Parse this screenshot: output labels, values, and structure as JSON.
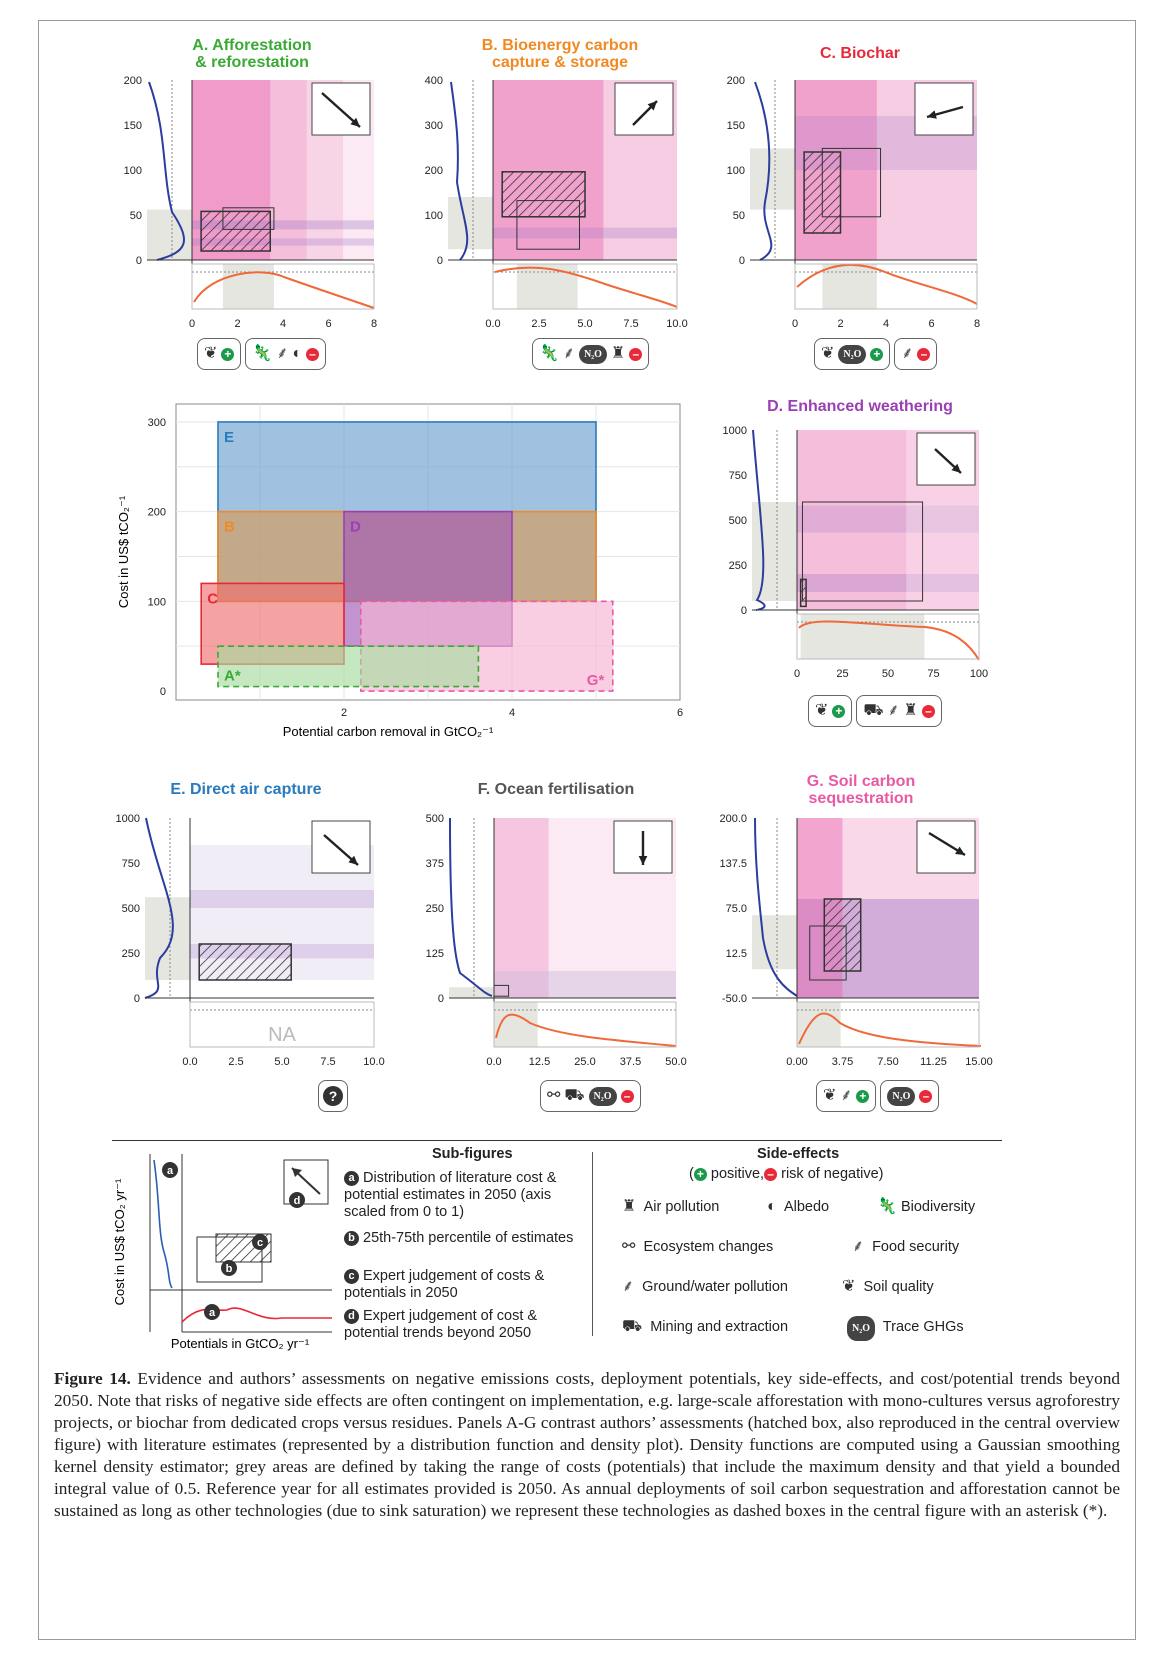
{
  "panels": {
    "A": {
      "title_1": "A. Afforestation",
      "title_2": "& reforestation",
      "color": "#3aaa35",
      "yticks": [
        "200",
        "150",
        "100",
        "50",
        "0"
      ],
      "xticks": [
        "0",
        "2",
        "4",
        "6",
        "8"
      ],
      "se_pos": [
        "soil-quality-icon"
      ],
      "se_neg": [
        "biodiversity-icon",
        "food-security-icon",
        "albedo-icon"
      ]
    },
    "B": {
      "title_1": "B. Bioenergy carbon",
      "title_2": "capture & storage",
      "color": "#f08a24",
      "yticks": [
        "400",
        "300",
        "200",
        "100",
        "0"
      ],
      "xticks": [
        "0.0",
        "2.5",
        "5.0",
        "7.5",
        "10.0"
      ],
      "se_neg": [
        "biodiversity-icon",
        "food-security-icon",
        "trace-ghg-icon",
        "air-pollution-icon"
      ]
    },
    "C": {
      "title_1": "C. Biochar",
      "title_2": "",
      "color": "#e8293a",
      "yticks": [
        "200",
        "150",
        "100",
        "50",
        "0"
      ],
      "xticks": [
        "0",
        "2",
        "4",
        "6",
        "8"
      ],
      "se_pos": [
        "soil-quality-icon",
        "trace-ghg-icon"
      ],
      "se_neg": [
        "food-security-icon"
      ]
    },
    "D": {
      "title_1": "D. Enhanced weathering",
      "title_2": "",
      "color": "#9b3fb4",
      "yticks": [
        "1000",
        "750",
        "500",
        "250",
        "0"
      ],
      "xticks": [
        "0",
        "25",
        "50",
        "75",
        "100"
      ],
      "se_pos": [
        "soil-quality-icon"
      ],
      "se_neg": [
        "mining-icon",
        "ground-water-pollution-icon",
        "air-pollution-icon"
      ]
    },
    "E": {
      "title_1": "E. Direct air capture",
      "title_2": "",
      "color": "#2a7bbd",
      "yticks": [
        "1000",
        "750",
        "500",
        "250",
        "0"
      ],
      "xticks": [
        "0.0",
        "2.5",
        "5.0",
        "7.5",
        "10.0"
      ],
      "na_label": "NA",
      "se_unknown": "?"
    },
    "F": {
      "title_1": "F. Ocean fertilisation",
      "title_2": "",
      "color": "#555555",
      "yticks": [
        "500",
        "375",
        "250",
        "125",
        "0"
      ],
      "xticks": [
        "0.0",
        "12.5",
        "25.0",
        "37.5",
        "50.0"
      ],
      "se_neg": [
        "ecosystem-changes-icon",
        "mining-icon",
        "trace-ghg-icon"
      ]
    },
    "G": {
      "title_1": "G. Soil carbon",
      "title_2": "sequestration",
      "color": "#e85aa6",
      "yticks": [
        "200.0",
        "137.5",
        "75.0",
        "12.5",
        "-50.0"
      ],
      "xticks": [
        "0.00",
        "3.75",
        "7.50",
        "11.25",
        "15.00"
      ],
      "se_pos": [
        "soil-quality-icon",
        "food-security-icon"
      ],
      "se_neg": [
        "trace-ghg-icon"
      ]
    }
  },
  "chart_data": [
    {
      "type": "bar",
      "title": "",
      "xlabel": "Potential carbon removal in GtCO₂⁻¹",
      "ylabel": "Cost in US$ tCO₂⁻¹",
      "xlim": [
        0,
        6
      ],
      "ylim": [
        -10,
        320
      ],
      "xticks": [
        2,
        4,
        6
      ],
      "yticks": [
        0,
        100,
        200,
        300
      ],
      "grid": true,
      "boxes": [
        {
          "label": "E",
          "x0": 0.5,
          "x1": 5.0,
          "y0": 100,
          "y1": 300,
          "color": "#6ea0d0",
          "edge": "#2a7bbd",
          "dashed": false
        },
        {
          "label": "B",
          "x0": 0.5,
          "x1": 5.0,
          "y0": 100,
          "y1": 200,
          "color": "#d59b5a",
          "edge": "#f08a24",
          "dashed": false
        },
        {
          "label": "D",
          "x0": 2.0,
          "x1": 4.0,
          "y0": 50,
          "y1": 200,
          "color": "#a25ab5",
          "edge": "#9b3fb4",
          "dashed": false
        },
        {
          "label": "C",
          "x0": 0.3,
          "x1": 2.0,
          "y0": 30,
          "y1": 120,
          "color": "#f07070",
          "edge": "#e8293a",
          "dashed": false
        },
        {
          "label": "G*",
          "x0": 2.2,
          "x1": 5.2,
          "y0": 0,
          "y1": 100,
          "color": "#f6b3d4",
          "edge": "#e85aa6",
          "dashed": true
        },
        {
          "label": "A*",
          "x0": 0.5,
          "x1": 3.6,
          "y0": 5,
          "y1": 50,
          "color": "#a8dba0",
          "edge": "#3aaa35",
          "dashed": true
        }
      ]
    }
  ],
  "legend": {
    "subfig_title": "Sub-figures",
    "side_title": "Side-effects",
    "side_sub_open": "(",
    "side_sub_pos": "positive,",
    "side_sub_neg": "risk of negative)",
    "mini_ylabel": "Cost in US$ tCO₂ yr⁻¹",
    "mini_xlabel": "Potentials in GtCO₂ yr⁻¹",
    "items": [
      {
        "key": "a",
        "text": "Distribution of literature cost & potential estimates in 2050 (axis scaled from 0 to 1)"
      },
      {
        "key": "b",
        "text": "25th-75th percentile of estimates"
      },
      {
        "key": "c",
        "text": "Expert judgement of costs & potentials in 2050"
      },
      {
        "key": "d",
        "text": "Expert judgement of cost & potential trends beyond 2050"
      }
    ],
    "side": [
      {
        "icon": "air-pollution-icon",
        "label": "Air pollution"
      },
      {
        "icon": "albedo-icon",
        "label": "Albedo"
      },
      {
        "icon": "biodiversity-icon",
        "label": "Biodiversity"
      },
      {
        "icon": "ecosystem-changes-icon",
        "label": "Ecosystem changes"
      },
      {
        "icon": "food-security-icon",
        "label": "Food security"
      },
      {
        "icon": "ground-water-pollution-icon",
        "label": "Ground/water pollution"
      },
      {
        "icon": "soil-quality-icon",
        "label": "Soil quality"
      },
      {
        "icon": "mining-icon",
        "label": "Mining and extraction"
      },
      {
        "icon": "trace-ghg-icon",
        "label": "Trace GHGs"
      }
    ],
    "n2o": "N₂O"
  },
  "caption": {
    "label": "Figure 14.",
    "text": " Evidence and authors’ assessments on negative emissions costs, deployment potentials, key side-effects, and cost/potential trends beyond 2050. Note that risks of negative side effects are often contingent on implementation, e.g. large-scale afforestation with mono-cultures versus agroforestry projects, or biochar from dedicated crops versus residues. Panels A-G contrast authors’ assessments (hatched box, also reproduced in the central overview figure) with literature estimates (represented by a distribution function and density plot). Density functions are computed using a Gaussian smoothing kernel density estimator; grey areas are defined by taking the range of costs (potentials) that include the maximum density and that yield a bounded integral value of 0.5. Reference year for all estimates provided is 2050. As annual deployments of soil carbon sequestration and afforestation cannot be sustained as long as other technologies (due to sink saturation) we represent these technologies as dashed boxes in the central figure with an asterisk (*)."
  }
}
